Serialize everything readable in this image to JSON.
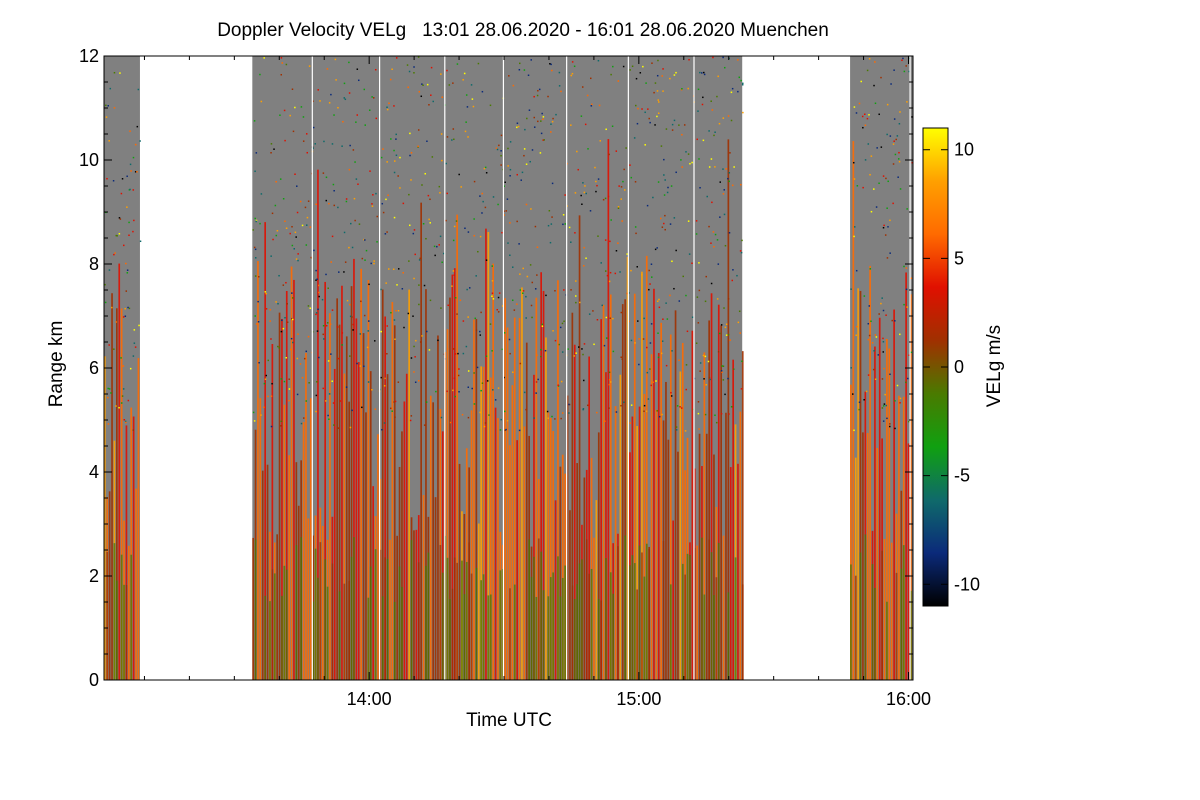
{
  "title": "Doppler Velocity VELg   13:01 28.06.2020 - 16:01 28.06.2020 Muenchen",
  "chart_data": {
    "type": "heatmap",
    "title": "Doppler Velocity VELg   13:01 28.06.2020 - 16:01 28.06.2020 Muenchen",
    "xlabel": "Time UTC",
    "ylabel": "Range km",
    "colorbar_label": "VELg m/s",
    "x_range": [
      "13:01",
      "16:01"
    ],
    "x_ticks": [
      "14:00",
      "15:00",
      "16:00"
    ],
    "y_range": [
      0,
      12
    ],
    "y_ticks": [
      "0",
      "2",
      "4",
      "6",
      "8",
      "10",
      "12"
    ],
    "color_range": [
      -11,
      11
    ],
    "color_ticks": [
      "10",
      "5",
      "0",
      "-5",
      "-10"
    ],
    "background_color": "#808080",
    "colorscale": [
      "#000000",
      "#0b2a7a",
      "#0f6a6a",
      "#10a010",
      "#4a7a00",
      "#a03000",
      "#e01000",
      "#ff6a00",
      "#ffa000",
      "#ffff00"
    ],
    "data_segments": [
      {
        "start": "13:01",
        "end": "13:09"
      },
      {
        "start": "13:34",
        "end": "15:23"
      },
      {
        "start": "15:47",
        "end": "16:03"
      }
    ],
    "sample_profile": [
      {
        "range_km": 0.5,
        "velocity_ms": 5
      },
      {
        "range_km": 2.0,
        "velocity_ms": 1
      },
      {
        "range_km": 4.0,
        "velocity_ms": 3
      },
      {
        "range_km": 8.0,
        "velocity_ms": 2
      }
    ]
  }
}
